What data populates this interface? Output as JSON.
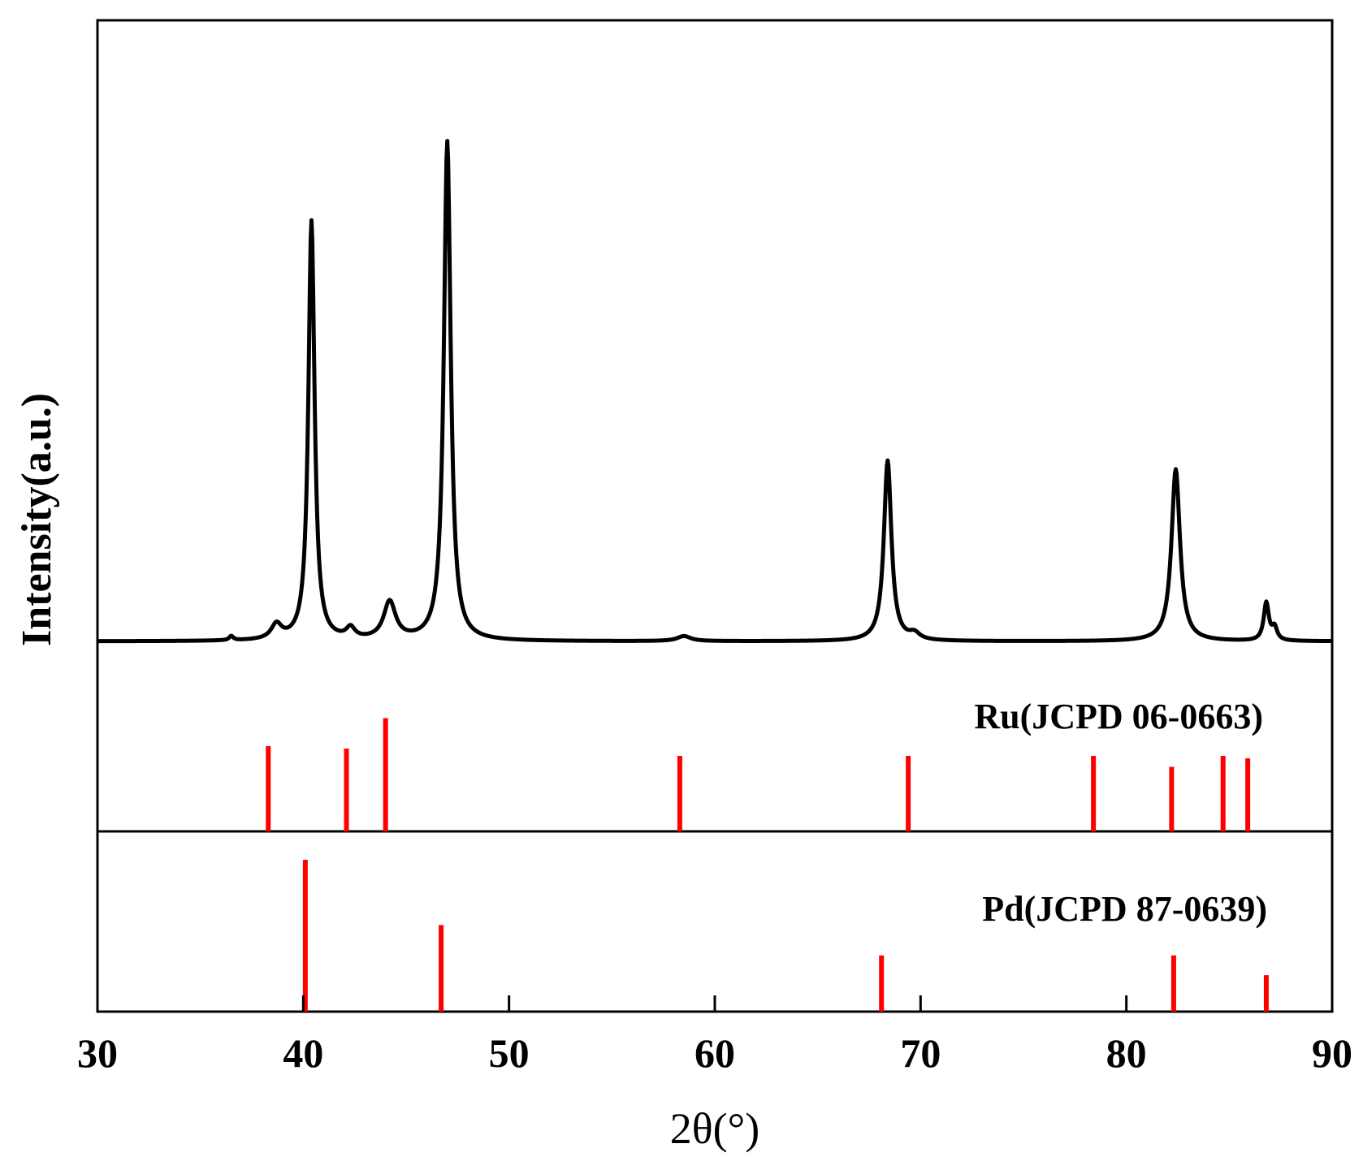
{
  "chart_data": {
    "type": "line",
    "xlabel": "2θ(°)",
    "ylabel": "Intensity(a.u.)",
    "xlim": [
      30,
      90
    ],
    "x_ticks": [
      30,
      40,
      50,
      60,
      70,
      80,
      90
    ],
    "grid": false,
    "series": [
      {
        "name": "",
        "color": "#000000",
        "baseline": 0.0,
        "peaks": [
          {
            "x": 36.5,
            "h": 0.01,
            "w": 0.12
          },
          {
            "x": 38.7,
            "h": 0.035,
            "w": 0.3
          },
          {
            "x": 40.4,
            "h": 1.0,
            "w": 0.18
          },
          {
            "x": 42.3,
            "h": 0.025,
            "w": 0.25
          },
          {
            "x": 44.2,
            "h": 0.09,
            "w": 0.35
          },
          {
            "x": 47.0,
            "h": 1.19,
            "w": 0.2
          },
          {
            "x": 58.5,
            "h": 0.012,
            "w": 0.4
          },
          {
            "x": 68.4,
            "h": 0.43,
            "w": 0.22
          },
          {
            "x": 69.7,
            "h": 0.015,
            "w": 0.3
          },
          {
            "x": 82.4,
            "h": 0.41,
            "w": 0.25
          },
          {
            "x": 86.8,
            "h": 0.09,
            "w": 0.15
          },
          {
            "x": 87.2,
            "h": 0.03,
            "w": 0.15
          }
        ]
      }
    ],
    "reference_patterns": [
      {
        "label": "Ru(JCPD 06-0663)",
        "color": "#ff0000",
        "lines": [
          {
            "x": 38.3,
            "h": 0.7
          },
          {
            "x": 42.1,
            "h": 0.68
          },
          {
            "x": 44.0,
            "h": 0.93
          },
          {
            "x": 58.3,
            "h": 0.62
          },
          {
            "x": 69.4,
            "h": 0.62
          },
          {
            "x": 78.4,
            "h": 0.62
          },
          {
            "x": 82.2,
            "h": 0.53
          },
          {
            "x": 84.7,
            "h": 0.62
          },
          {
            "x": 85.9,
            "h": 0.6
          }
        ]
      },
      {
        "label": "Pd(JCPD 87-0639)",
        "color": "#ff0000",
        "lines": [
          {
            "x": 40.1,
            "h": 1.0
          },
          {
            "x": 46.7,
            "h": 0.57
          },
          {
            "x": 68.1,
            "h": 0.37
          },
          {
            "x": 82.3,
            "h": 0.37
          },
          {
            "x": 86.8,
            "h": 0.24
          }
        ]
      }
    ]
  }
}
